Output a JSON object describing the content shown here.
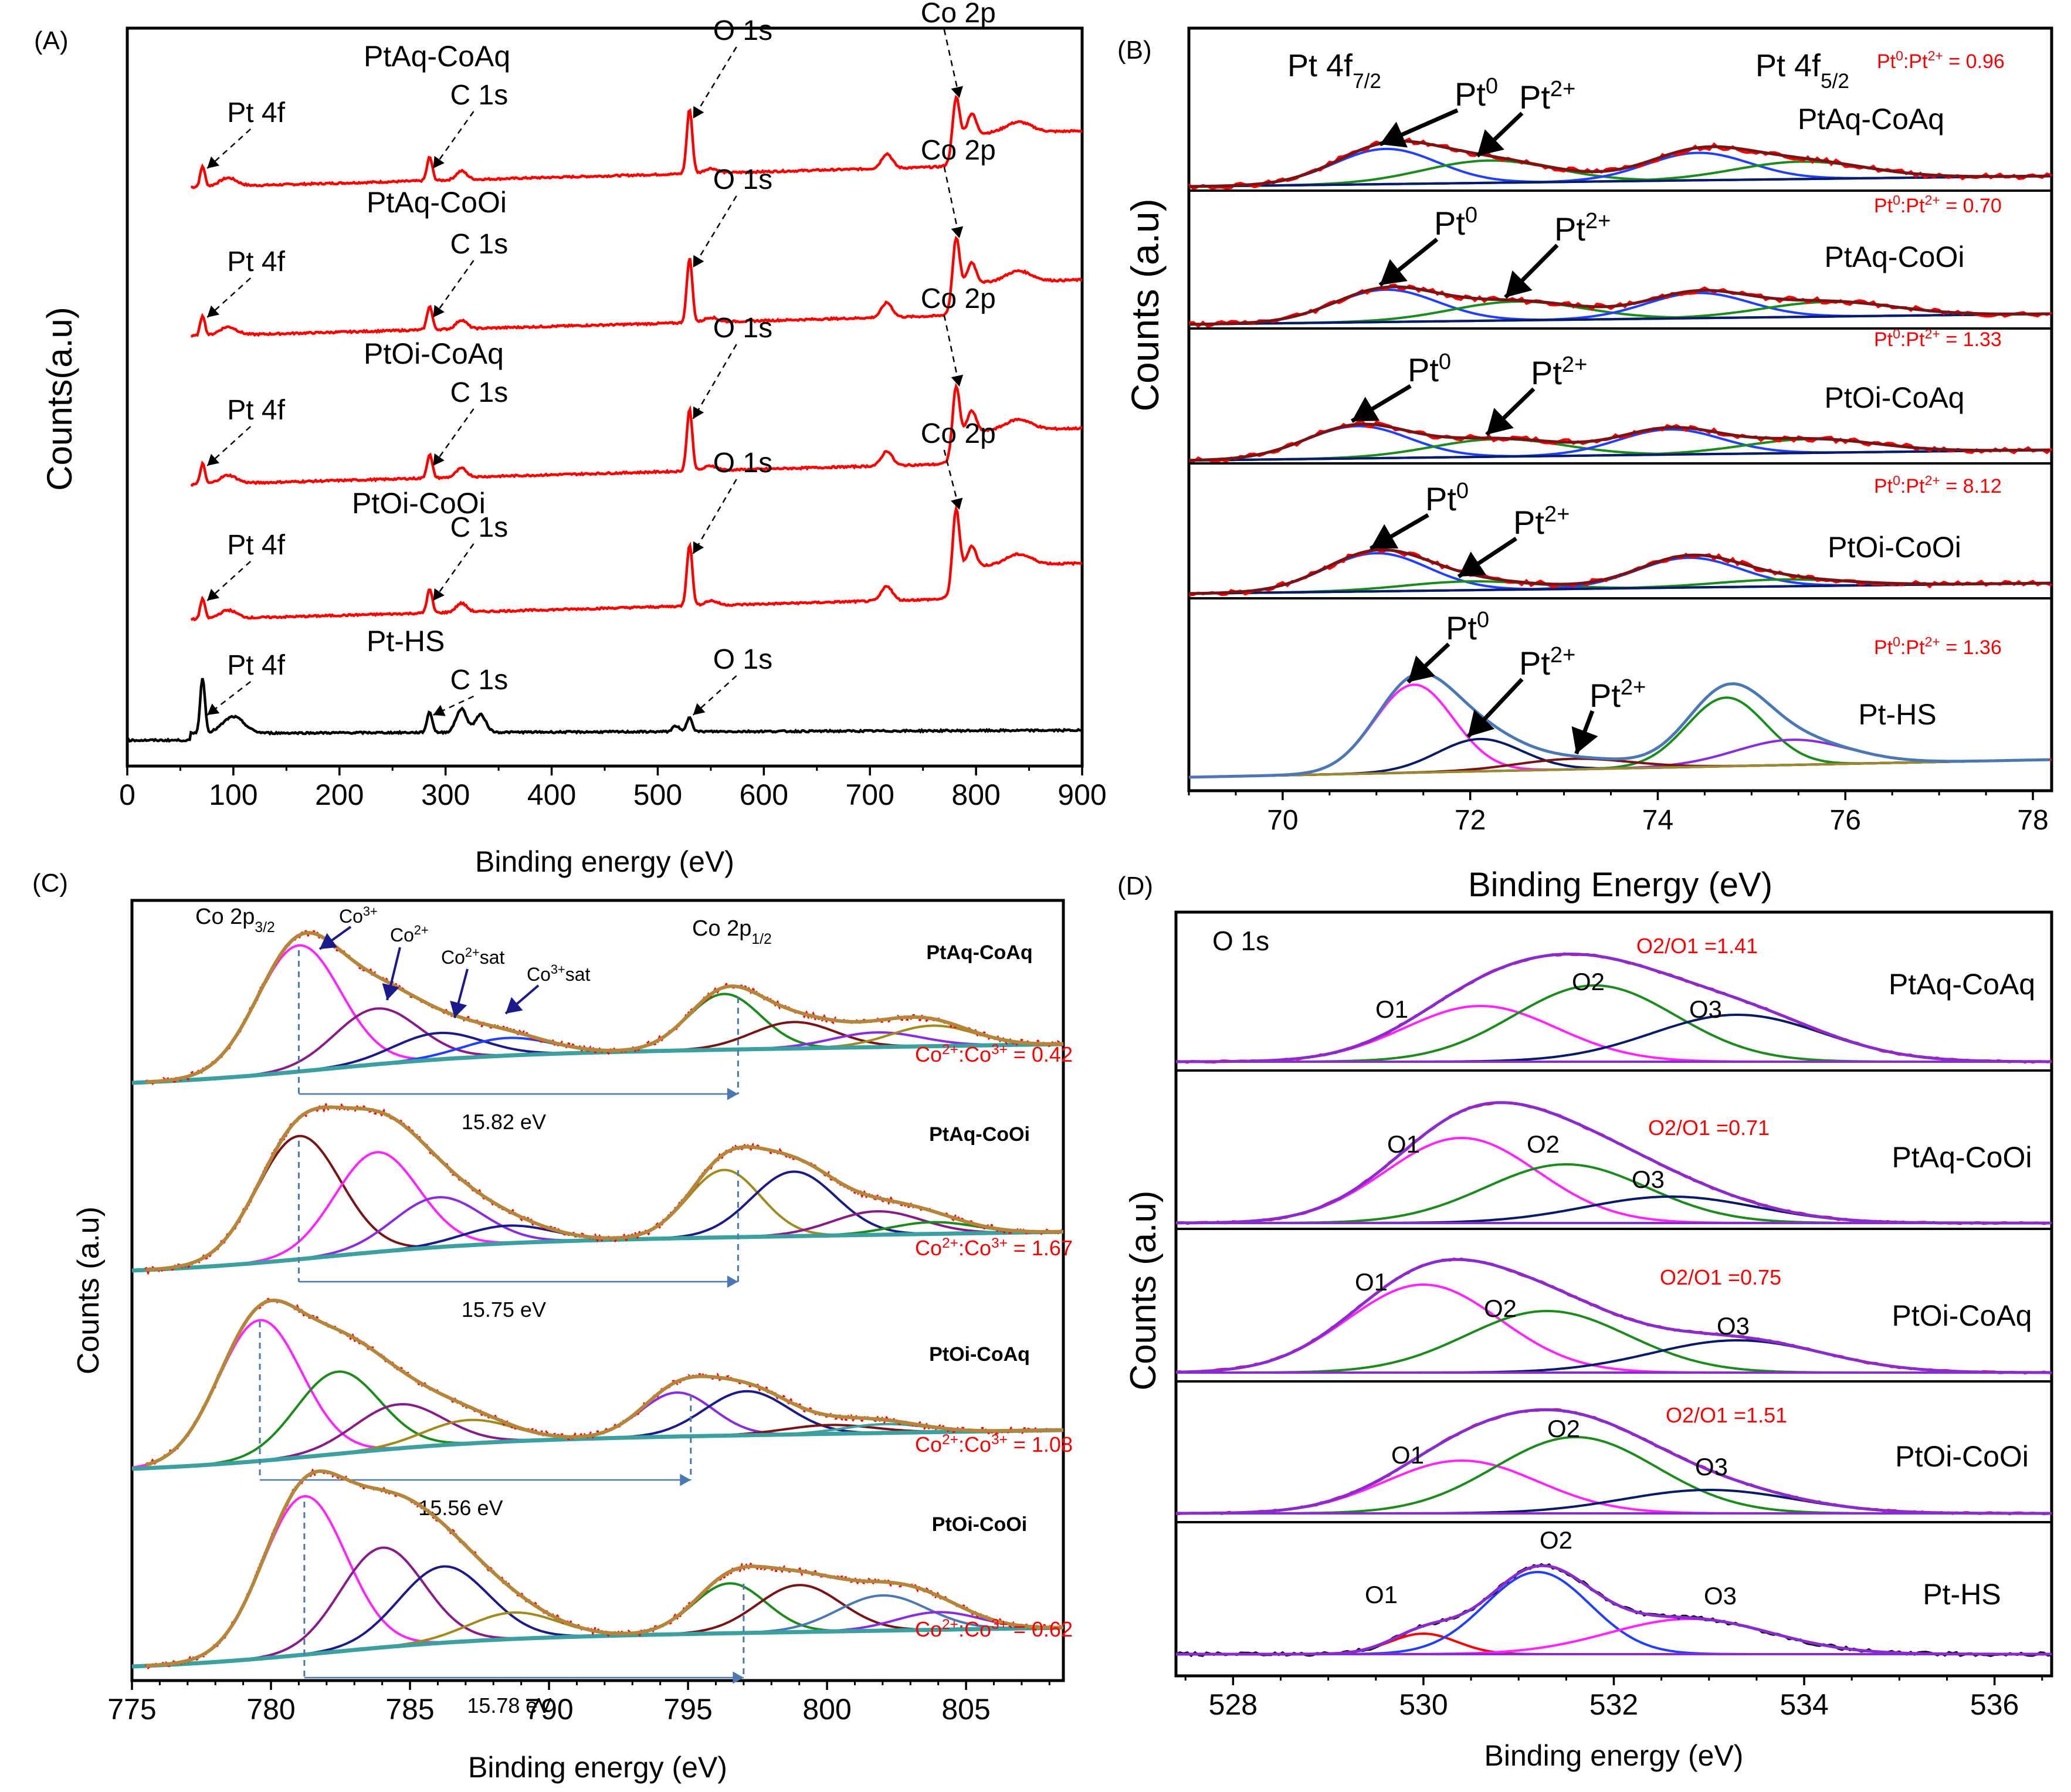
{
  "chart_data": [
    {
      "panel": "(A)",
      "type": "line",
      "title": "",
      "xlabel": "Binding  energy (eV)",
      "ylabel": "Counts(a.u)",
      "xlim": [
        0,
        900
      ],
      "xticks": [
        0,
        100,
        200,
        300,
        400,
        500,
        600,
        700,
        800,
        900
      ],
      "series": [
        {
          "name": "PtAq-CoAq",
          "color": "#ff0000",
          "peaks": [
            {
              "label": "Pt 4f",
              "x": 72
            },
            {
              "label": "C 1s",
              "x": 285
            },
            {
              "label": "O 1s",
              "x": 530
            },
            {
              "label": "Co 2p",
              "x": 781
            }
          ]
        },
        {
          "name": "PtAq-CoOi",
          "color": "#ff0000",
          "peaks": [
            {
              "label": "Pt 4f",
              "x": 72
            },
            {
              "label": "C 1s",
              "x": 285
            },
            {
              "label": "O 1s",
              "x": 530
            },
            {
              "label": "Co 2p",
              "x": 781
            }
          ]
        },
        {
          "name": "PtOi-CoAq",
          "color": "#ff0000",
          "peaks": [
            {
              "label": "Pt 4f",
              "x": 72
            },
            {
              "label": "C 1s",
              "x": 285
            },
            {
              "label": "O 1s",
              "x": 530
            },
            {
              "label": "Co 2p",
              "x": 781
            }
          ]
        },
        {
          "name": "PtOi-CoOi",
          "color": "#ff0000",
          "peaks": [
            {
              "label": "Pt 4f",
              "x": 72
            },
            {
              "label": "C 1s",
              "x": 285
            },
            {
              "label": "O 1s",
              "x": 530
            },
            {
              "label": "Co 2p",
              "x": 781
            }
          ]
        },
        {
          "name": "Pt-HS",
          "color": "#000000",
          "peaks": [
            {
              "label": "Pt 4f",
              "x": 72
            },
            {
              "label": "C 1s",
              "x": 285
            },
            {
              "label": "O 1s",
              "x": 530
            }
          ]
        }
      ]
    },
    {
      "panel": "(B)",
      "type": "line",
      "title": "",
      "xlabel": "Binding Energy (eV)",
      "ylabel": "Counts  (a.u)",
      "xlim": [
        69,
        78.2
      ],
      "xticks": [
        70,
        72,
        74,
        76,
        78
      ],
      "header_left": "Pt 4f7/2",
      "header_right": "Pt 4f5/2",
      "series": [
        {
          "name": "PtAq-CoAq",
          "ratio": "Pt⁰:Pt²⁺ = 0.96",
          "components": [
            {
              "label": "Pt⁰",
              "x": 71.1
            },
            {
              "label": "Pt²⁺",
              "x": 72.2
            }
          ]
        },
        {
          "name": "PtAq-CoOi",
          "ratio": "Pt⁰:Pt²⁺ = 0.70",
          "components": [
            {
              "label": "Pt⁰",
              "x": 71.1
            },
            {
              "label": "Pt²⁺",
              "x": 72.5
            }
          ]
        },
        {
          "name": "PtOi-CoAq",
          "ratio": "Pt⁰:Pt²⁺ = 1.33",
          "components": [
            {
              "label": "Pt⁰",
              "x": 70.8
            },
            {
              "label": "Pt²⁺",
              "x": 72.3
            }
          ]
        },
        {
          "name": "PtOi-CoOi",
          "ratio": "Pt⁰:Pt²⁺ = 8.12",
          "components": [
            {
              "label": "Pt⁰",
              "x": 71.0
            },
            {
              "label": "Pt²⁺",
              "x": 72.0
            }
          ]
        },
        {
          "name": "Pt-HS",
          "ratio": "Pt⁰:Pt²⁺ = 1.36",
          "components": [
            {
              "label": "Pt⁰",
              "x": 71.4
            },
            {
              "label": "Pt²⁺",
              "x": 72.1
            },
            {
              "label": "Pt²⁺",
              "x": 73.1
            }
          ]
        }
      ]
    },
    {
      "panel": "(C)",
      "type": "line",
      "title": "",
      "xlabel": "Binding energy (eV)",
      "ylabel": "Counts (a.u)",
      "xlim": [
        775,
        808.5
      ],
      "xticks": [
        775,
        780,
        785,
        790,
        795,
        800,
        805
      ],
      "peak_labels": [
        "Co 2p3/2",
        "Co³⁺",
        "Co²⁺",
        "Co²⁺sat",
        "Co³⁺sat",
        "Co 2p1/2"
      ],
      "series": [
        {
          "name": "PtAq-CoAq",
          "ratio": "Co²⁺:Co³⁺ = 0.42",
          "splitting": "15.82 eV",
          "p32": 781.0,
          "p12": 796.8
        },
        {
          "name": "PtAq-CoOi",
          "ratio": "Co²⁺:Co³⁺ = 1.67",
          "splitting": "15.75 eV",
          "p32": 781.0,
          "p12": 796.8
        },
        {
          "name": "PtOi-CoAq",
          "ratio": "Co²⁺:Co³⁺ = 1.08",
          "splitting": "15.56 eV",
          "p32": 779.6,
          "p12": 795.1
        },
        {
          "name": "PtOi-CoOi",
          "ratio": "Co²⁺:Co³⁺ = 0.62",
          "splitting": "15.78 eV",
          "p32": 781.2,
          "p12": 797.0
        }
      ]
    },
    {
      "panel": "(D)",
      "type": "line",
      "title": "O 1s",
      "xlabel": "Binding energy (eV)",
      "ylabel": "Counts (a.u)",
      "xlim": [
        527.4,
        536.6
      ],
      "xticks": [
        528,
        530,
        532,
        534,
        536
      ],
      "series": [
        {
          "name": "PtAq-CoAq",
          "ratio": "O2/O1 =1.41",
          "components": [
            {
              "label": "O1",
              "x": 530.6
            },
            {
              "label": "O2",
              "x": 531.8
            },
            {
              "label": "O3",
              "x": 533.3
            }
          ]
        },
        {
          "name": "PtAq-CoOi",
          "ratio": "O2/O1 =0.71",
          "components": [
            {
              "label": "O1",
              "x": 530.4
            },
            {
              "label": "O2",
              "x": 531.5
            },
            {
              "label": "O3",
              "x": 532.6
            }
          ]
        },
        {
          "name": "PtOi-CoAq",
          "ratio": "O2/O1 =0.75",
          "components": [
            {
              "label": "O1",
              "x": 530.0
            },
            {
              "label": "O2",
              "x": 531.3
            },
            {
              "label": "O3",
              "x": 533.3
            }
          ]
        },
        {
          "name": "PtOi-CoOi",
          "ratio": "O2/O1 =1.51",
          "components": [
            {
              "label": "O1",
              "x": 530.4
            },
            {
              "label": "O2",
              "x": 531.6
            },
            {
              "label": "O3",
              "x": 533.0
            }
          ]
        },
        {
          "name": "Pt-HS",
          "ratio": "",
          "components": [
            {
              "label": "O1",
              "x": 530.0
            },
            {
              "label": "O2",
              "x": 531.2
            },
            {
              "label": "O3",
              "x": 532.8
            }
          ]
        }
      ]
    }
  ],
  "panels": {
    "a": {
      "letter": "(A)",
      "xlabel": "Binding  energy (eV)",
      "ylabel": "Counts(a.u)"
    },
    "b": {
      "letter": "(B)",
      "xlabel": "Binding Energy (eV)",
      "ylabel": "Counts  (a.u)"
    },
    "c": {
      "letter": "(C)",
      "xlabel": "Binding energy (eV)",
      "ylabel": "Counts (a.u)"
    },
    "d": {
      "letter": "(D)",
      "xlabel": "Binding energy (eV)",
      "ylabel": "Counts (a.u)",
      "title": "O 1s"
    }
  },
  "colors": {
    "red": "#ff0000",
    "black": "#000000",
    "navy": "#1a1a8c",
    "blue": "#1f3fff",
    "green": "#1a8c1a",
    "brown": "#7a1414",
    "magenta": "#ff22ff",
    "purple": "#8a1a8a",
    "olive": "#a08a1a",
    "teal": "#3aa0a0",
    "violet": "#8a2be2",
    "steel": "#4a78b4",
    "darkblue": "#0a1a6a"
  }
}
